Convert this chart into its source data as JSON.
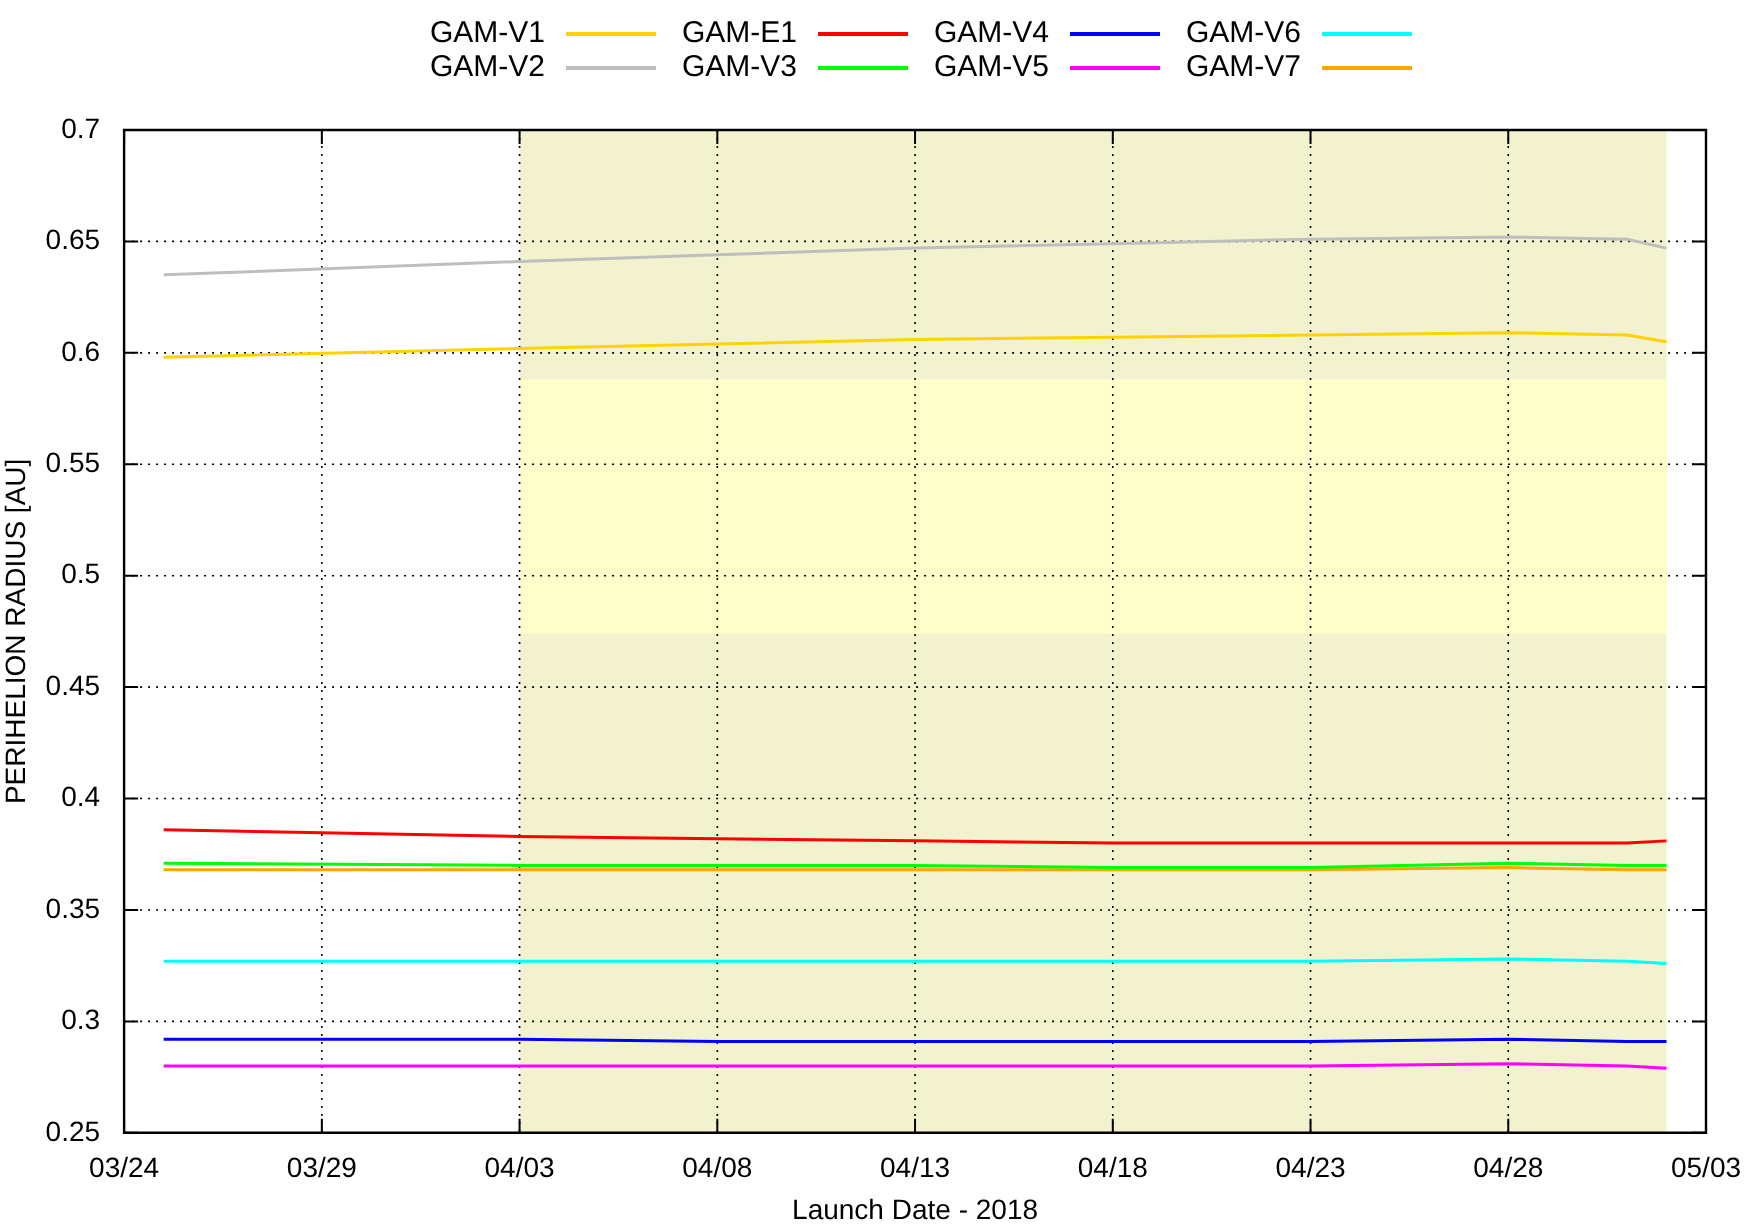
{
  "chart_data": {
    "type": "line",
    "xlabel": "Launch Date - 2018",
    "ylabel": "PERIHELION RADIUS [AU]",
    "x": [
      "2018-03-25",
      "2018-04-03",
      "2018-04-08",
      "2018-04-13",
      "2018-04-18",
      "2018-04-23",
      "2018-04-28",
      "2018-05-01",
      "2018-05-02"
    ],
    "series": [
      {
        "name": "GAM-V1",
        "color": "#ffd200",
        "values": [
          0.598,
          0.602,
          0.604,
          0.606,
          0.607,
          0.608,
          0.609,
          0.608,
          0.605
        ]
      },
      {
        "name": "GAM-E1",
        "color": "#ff0000",
        "values": [
          0.386,
          0.383,
          0.382,
          0.381,
          0.38,
          0.38,
          0.38,
          0.38,
          0.381
        ]
      },
      {
        "name": "GAM-V4",
        "color": "#0000ff",
        "values": [
          0.292,
          0.292,
          0.291,
          0.291,
          0.291,
          0.291,
          0.292,
          0.291,
          0.291
        ]
      },
      {
        "name": "GAM-V6",
        "color": "#00ffff",
        "values": [
          0.327,
          0.327,
          0.327,
          0.327,
          0.327,
          0.327,
          0.328,
          0.327,
          0.326
        ]
      },
      {
        "name": "GAM-V2",
        "color": "#bebebe",
        "values": [
          0.635,
          0.641,
          0.644,
          0.647,
          0.649,
          0.651,
          0.652,
          0.651,
          0.647
        ]
      },
      {
        "name": "GAM-V3",
        "color": "#00ff00",
        "values": [
          0.371,
          0.37,
          0.37,
          0.37,
          0.369,
          0.369,
          0.371,
          0.37,
          0.37
        ]
      },
      {
        "name": "GAM-V5",
        "color": "#ff00ff",
        "values": [
          0.28,
          0.28,
          0.28,
          0.28,
          0.28,
          0.28,
          0.281,
          0.28,
          0.279
        ]
      },
      {
        "name": "GAM-V7",
        "color": "#ffa500",
        "values": [
          0.368,
          0.368,
          0.368,
          0.368,
          0.368,
          0.368,
          0.369,
          0.368,
          0.368
        ]
      }
    ],
    "xlim": [
      "2018-03-24",
      "2018-05-03"
    ],
    "xticks": [
      {
        "value": "2018-03-24",
        "label": "03/24"
      },
      {
        "value": "2018-03-29",
        "label": "03/29"
      },
      {
        "value": "2018-04-03",
        "label": "04/03"
      },
      {
        "value": "2018-04-08",
        "label": "04/08"
      },
      {
        "value": "2018-04-13",
        "label": "04/13"
      },
      {
        "value": "2018-04-18",
        "label": "04/18"
      },
      {
        "value": "2018-04-23",
        "label": "04/23"
      },
      {
        "value": "2018-04-28",
        "label": "04/28"
      },
      {
        "value": "2018-05-03",
        "label": "05/03"
      }
    ],
    "ylim": [
      0.25,
      0.7
    ],
    "yticks": [
      0.25,
      0.3,
      0.35,
      0.4,
      0.45,
      0.5,
      0.55,
      0.6,
      0.65,
      0.7
    ],
    "bands": [
      {
        "axis": "x",
        "from": "2018-04-03",
        "to": "2018-05-02",
        "color": "#f2f2cf"
      },
      {
        "axis": "y",
        "from": 0.474,
        "to": 0.588,
        "color": "#ffffcc"
      }
    ],
    "grid": true,
    "legend": "top",
    "marker": "none",
    "line_style": "solid"
  }
}
